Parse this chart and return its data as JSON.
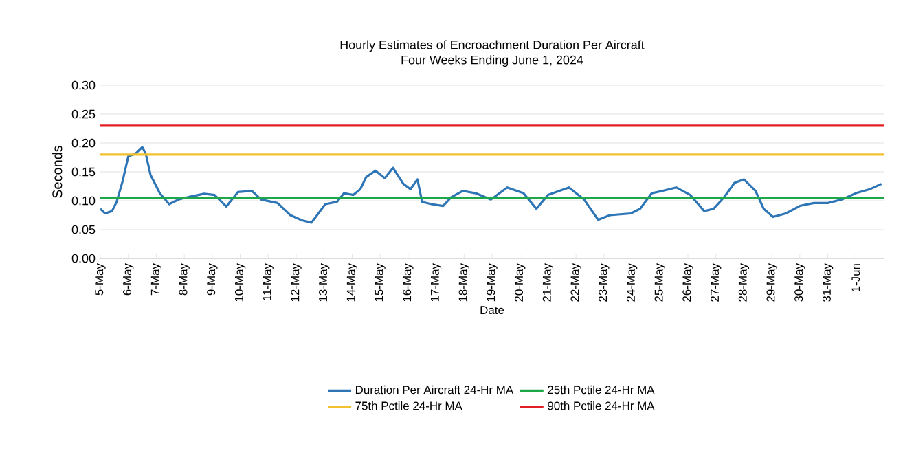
{
  "chart_data": {
    "type": "line",
    "title": "Hourly Estimates of Encroachment Duration Per Aircraft\nFour Weeks Ending June 1, 2024",
    "xlabel": "Date",
    "ylabel": "Seconds",
    "x": [
      "2024-05-05T00:00",
      "2024-05-05T04:00",
      "2024-05-05T10:00",
      "2024-05-05T14:00",
      "2024-05-05T19:00",
      "2024-05-06T00:00",
      "2024-05-06T06:00",
      "2024-05-06T12:00",
      "2024-05-06T15:00",
      "2024-05-06T19:00",
      "2024-05-07T03:00",
      "2024-05-07T11:00",
      "2024-05-07T19:00",
      "2024-05-08T05:00",
      "2024-05-08T17:00",
      "2024-05-09T02:00",
      "2024-05-09T12:00",
      "2024-05-09T22:00",
      "2024-05-10T10:00",
      "2024-05-10T18:00",
      "2024-05-11T08:00",
      "2024-05-11T19:00",
      "2024-05-12T05:00",
      "2024-05-12T13:00",
      "2024-05-13T01:00",
      "2024-05-13T11:00",
      "2024-05-13T17:00",
      "2024-05-14T01:00",
      "2024-05-14T07:00",
      "2024-05-14T12:00",
      "2024-05-14T20:00",
      "2024-05-15T04:00",
      "2024-05-15T11:00",
      "2024-05-15T20:00",
      "2024-05-16T02:00",
      "2024-05-16T08:00",
      "2024-05-16T12:00",
      "2024-05-16T20:00",
      "2024-05-17T06:00",
      "2024-05-17T13:00",
      "2024-05-17T23:00",
      "2024-05-18T10:00",
      "2024-05-18T23:00",
      "2024-05-19T13:00",
      "2024-05-20T03:00",
      "2024-05-20T14:00",
      "2024-05-21T00:00",
      "2024-05-21T18:00",
      "2024-05-22T07:00",
      "2024-05-22T19:00",
      "2024-05-23T05:00",
      "2024-05-23T23:00",
      "2024-05-24T07:00",
      "2024-05-24T17:00",
      "2024-05-25T02:00",
      "2024-05-25T14:00",
      "2024-05-26T02:00",
      "2024-05-26T14:00",
      "2024-05-26T22:00",
      "2024-05-27T07:00",
      "2024-05-27T16:00",
      "2024-05-28T00:00",
      "2024-05-28T10:00",
      "2024-05-28T17:00",
      "2024-05-29T01:00",
      "2024-05-29T12:00",
      "2024-05-30T00:00",
      "2024-05-30T12:00",
      "2024-05-31T00:00",
      "2024-05-31T12:00",
      "2024-06-01T00:00",
      "2024-06-01T12:00",
      "2024-06-01T22:00"
    ],
    "series": [
      {
        "name": "Duration Per Aircraft 24-Hr MA",
        "color": "#2e75b6",
        "values": [
          0.086,
          0.078,
          0.082,
          0.098,
          0.133,
          0.177,
          0.181,
          0.193,
          0.181,
          0.145,
          0.113,
          0.094,
          0.102,
          0.107,
          0.112,
          0.11,
          0.09,
          0.115,
          0.117,
          0.102,
          0.096,
          0.075,
          0.066,
          0.062,
          0.094,
          0.098,
          0.113,
          0.11,
          0.12,
          0.141,
          0.152,
          0.139,
          0.157,
          0.129,
          0.12,
          0.137,
          0.098,
          0.094,
          0.091,
          0.106,
          0.117,
          0.113,
          0.102,
          0.123,
          0.113,
          0.086,
          0.11,
          0.123,
          0.102,
          0.067,
          0.075,
          0.078,
          0.086,
          0.113,
          0.117,
          0.123,
          0.11,
          0.082,
          0.086,
          0.106,
          0.131,
          0.137,
          0.117,
          0.086,
          0.072,
          0.078,
          0.091,
          0.096,
          0.096,
          0.102,
          0.113,
          0.12,
          0.129
        ]
      }
    ],
    "ref_lines": [
      {
        "axis": "y",
        "value": 0.105,
        "label": "25th Pctile 24-Hr MA",
        "color": "#1fa84a"
      },
      {
        "axis": "y",
        "value": 0.18,
        "label": "75th Pctile 24-Hr MA",
        "color": "#f2c12e"
      },
      {
        "axis": "y",
        "value": 0.23,
        "label": "90th Pctile 24-Hr MA",
        "color": "#e31f26"
      }
    ],
    "xlim": [
      "2024-05-05",
      "2024-06-02"
    ],
    "xticks": [
      {
        "value": "2024-05-05",
        "label": "5-May"
      },
      {
        "value": "2024-05-06",
        "label": "6-May"
      },
      {
        "value": "2024-05-07",
        "label": "7-May"
      },
      {
        "value": "2024-05-08",
        "label": "8-May"
      },
      {
        "value": "2024-05-09",
        "label": "9-May"
      },
      {
        "value": "2024-05-10",
        "label": "10-May"
      },
      {
        "value": "2024-05-11",
        "label": "11-May"
      },
      {
        "value": "2024-05-12",
        "label": "12-May"
      },
      {
        "value": "2024-05-13",
        "label": "13-May"
      },
      {
        "value": "2024-05-14",
        "label": "14-May"
      },
      {
        "value": "2024-05-15",
        "label": "15-May"
      },
      {
        "value": "2024-05-16",
        "label": "16-May"
      },
      {
        "value": "2024-05-17",
        "label": "17-May"
      },
      {
        "value": "2024-05-18",
        "label": "18-May"
      },
      {
        "value": "2024-05-19",
        "label": "19-May"
      },
      {
        "value": "2024-05-20",
        "label": "20-May"
      },
      {
        "value": "2024-05-21",
        "label": "21-May"
      },
      {
        "value": "2024-05-22",
        "label": "22-May"
      },
      {
        "value": "2024-05-23",
        "label": "23-May"
      },
      {
        "value": "2024-05-24",
        "label": "24-May"
      },
      {
        "value": "2024-05-25",
        "label": "25-May"
      },
      {
        "value": "2024-05-26",
        "label": "26-May"
      },
      {
        "value": "2024-05-27",
        "label": "27-May"
      },
      {
        "value": "2024-05-28",
        "label": "28-May"
      },
      {
        "value": "2024-05-29",
        "label": "29-May"
      },
      {
        "value": "2024-05-30",
        "label": "30-May"
      },
      {
        "value": "2024-05-31",
        "label": "31-May"
      },
      {
        "value": "2024-06-01",
        "label": "1-Jun"
      }
    ],
    "ylim": [
      0,
      0.3
    ],
    "yticks": [
      {
        "value": 0,
        "label": "0.00"
      },
      {
        "value": 0.05,
        "label": "0.05"
      },
      {
        "value": 0.1,
        "label": "0.10"
      },
      {
        "value": 0.15,
        "label": "0.15"
      },
      {
        "value": 0.2,
        "label": "0.20"
      },
      {
        "value": 0.25,
        "label": "0.25"
      },
      {
        "value": 0.3,
        "label": "0.30"
      }
    ],
    "grid": "y",
    "legend": "bottom",
    "marker": "none",
    "line_style": "solid"
  }
}
